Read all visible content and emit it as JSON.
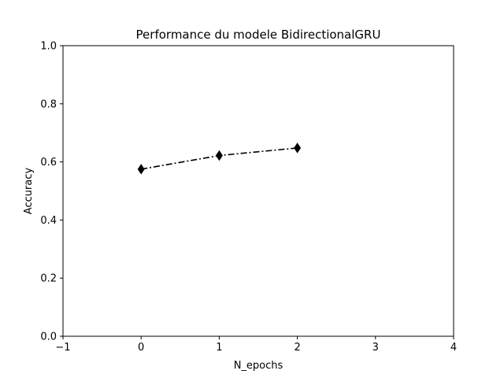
{
  "chart_data": {
    "type": "line",
    "title": "Performance du modele BidirectionalGRU",
    "xlabel": "N_epochs",
    "ylabel": "Accuracy",
    "xlim": [
      -1,
      4
    ],
    "ylim": [
      0.0,
      1.0
    ],
    "xticks": [
      -1,
      0,
      1,
      2,
      3,
      4
    ],
    "xtick_labels": [
      "−1",
      "0",
      "1",
      "2",
      "3",
      "4"
    ],
    "yticks": [
      0.0,
      0.2,
      0.4,
      0.6,
      0.8,
      1.0
    ],
    "ytick_labels": [
      "0.0",
      "0.2",
      "0.4",
      "0.6",
      "0.8",
      "1.0"
    ],
    "grid": false,
    "series": [
      {
        "x": [
          0,
          1,
          2
        ],
        "y": [
          0.575,
          0.622,
          0.648
        ],
        "color": "#000000",
        "line_style": "dash-dot",
        "marker": "thin-diamond"
      }
    ]
  }
}
